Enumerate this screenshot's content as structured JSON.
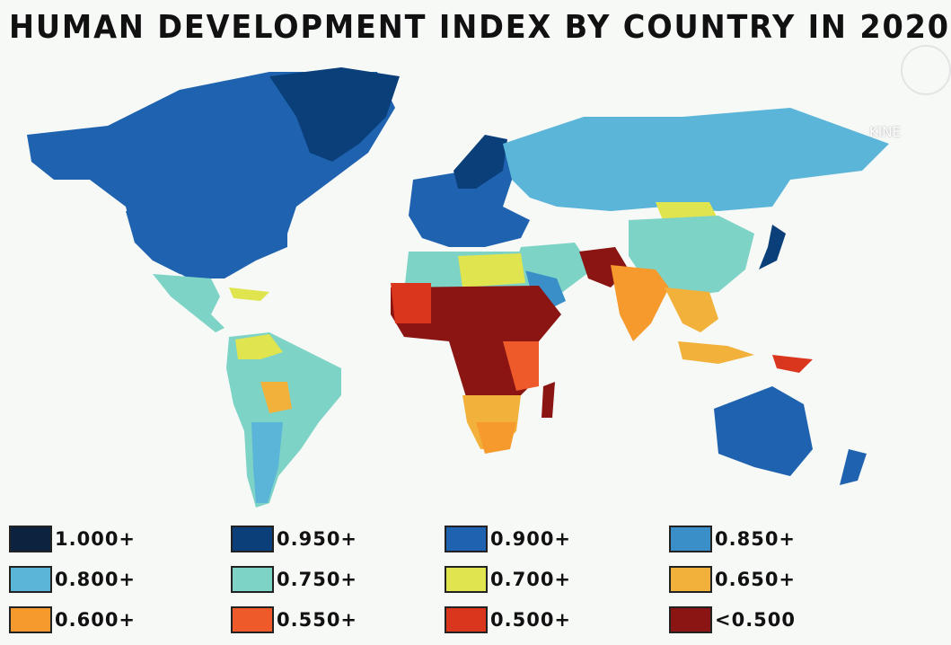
{
  "title": "HUMAN DEVELOPMENT INDEX BY COUNTRY IN 2020",
  "watermark": "KINE",
  "legend": [
    {
      "label": "1.000+",
      "color": "#0c2340"
    },
    {
      "label": "0.950+",
      "color": "#0b3f7a"
    },
    {
      "label": "0.900+",
      "color": "#1f63b0"
    },
    {
      "label": "0.850+",
      "color": "#3a8fc9"
    },
    {
      "label": "0.800+",
      "color": "#5bb5d8"
    },
    {
      "label": "0.750+",
      "color": "#7dd3c6"
    },
    {
      "label": "0.700+",
      "color": "#dfe44f"
    },
    {
      "label": "0.650+",
      "color": "#f2b13a"
    },
    {
      "label": "0.600+",
      "color": "#f69a2e"
    },
    {
      "label": "0.550+",
      "color": "#ef5a2a"
    },
    {
      "label": "0.500+",
      "color": "#d9361d"
    },
    {
      "label": "<0.500",
      "color": "#8b1512"
    }
  ]
}
